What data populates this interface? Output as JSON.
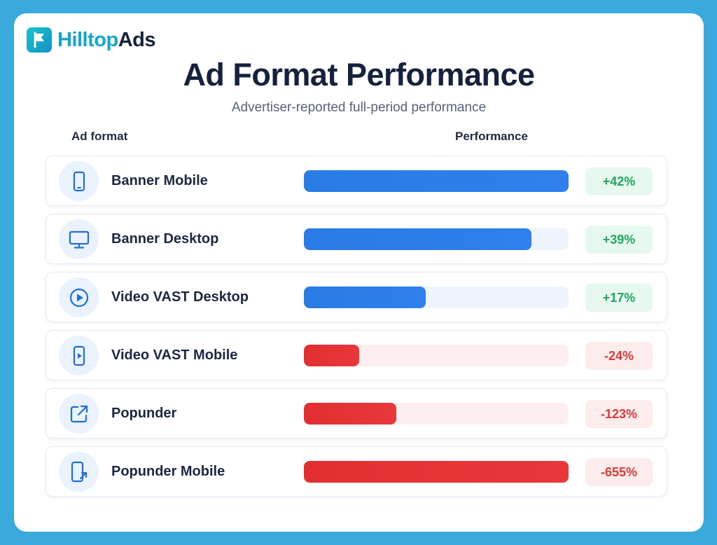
{
  "brand": {
    "name_part1": "Hilltop",
    "name_part2": "Ads"
  },
  "chart_data": {
    "type": "bar",
    "title": "Ad Format Performance",
    "subtitle": "Advertiser-reported full-period performance",
    "column_headers": {
      "category": "Ad format",
      "value": "Performance"
    },
    "categories": [
      "Banner Mobile",
      "Banner Desktop",
      "Video VAST Desktop",
      "Video VAST Mobile",
      "Popunder",
      "Popunder Mobile"
    ],
    "values": [
      42,
      39,
      17,
      -24,
      -123,
      -655
    ],
    "value_labels": [
      "+42%",
      "+39%",
      "+17%",
      "-24%",
      "-123%",
      "-655%"
    ],
    "bar_fill_fraction": [
      1.0,
      0.86,
      0.46,
      0.21,
      0.35,
      1.0
    ],
    "icons": [
      "smartphone-icon",
      "monitor-icon",
      "play-circle-icon",
      "mobile-video-icon",
      "external-link-icon",
      "mobile-redirect-icon"
    ],
    "colors": {
      "positive": "#2f80ed",
      "positive_track": "#edf4fc",
      "positive_badge_bg": "#e7f8ee",
      "positive_text": "#22a860",
      "negative": "#e8383b",
      "negative_track": "#fdefef",
      "negative_badge_bg": "#fdecec",
      "negative_text": "#dc3a3a"
    }
  }
}
